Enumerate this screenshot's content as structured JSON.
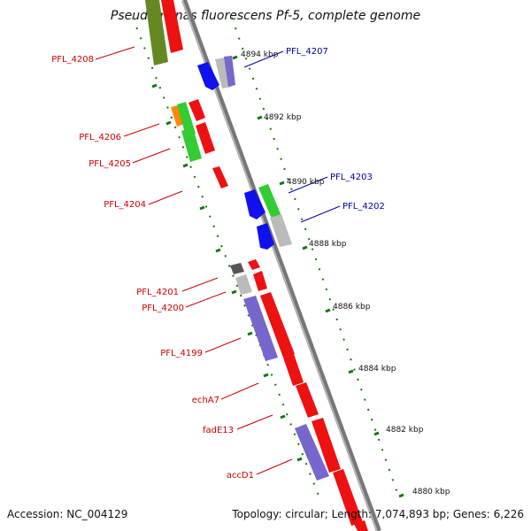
{
  "title": "Pseudomonas fluorescens Pf-5, complete genome",
  "footer": {
    "accession": "Accession: NC_004129",
    "info": "Topology: circular; Length: 7,074,893 bp; Genes: 6,226"
  },
  "colors": {
    "backbone": "#777777",
    "forward_gene": "#ee1111",
    "reverse_gene": "#1111ee",
    "purple_gene": "#7766cc",
    "green_gene": "#33cc33",
    "olive_gene": "#668822",
    "gray_gene": "#bbbbbb",
    "dark_gene": "#555555",
    "orange_gene": "#ff8800",
    "tick_green": "#117711",
    "label_left": "#cc0000",
    "label_right": "#0000aa"
  },
  "scale_labels": [
    "4894 kbp",
    "4892 kbp",
    "4890 kbp",
    "4888 kbp",
    "4886 kbp",
    "4884 kbp",
    "4882 kbp",
    "4880 kbp"
  ],
  "gene_labels_left": [
    "PFL_4208",
    "PFL_4206",
    "PFL_4205",
    "PFL_4204",
    "PFL_4201",
    "PFL_4200",
    "PFL_4199",
    "echA7",
    "fadE13",
    "accD1"
  ],
  "gene_labels_right": [
    "PFL_4207",
    "PFL_4203",
    "PFL_4202"
  ]
}
